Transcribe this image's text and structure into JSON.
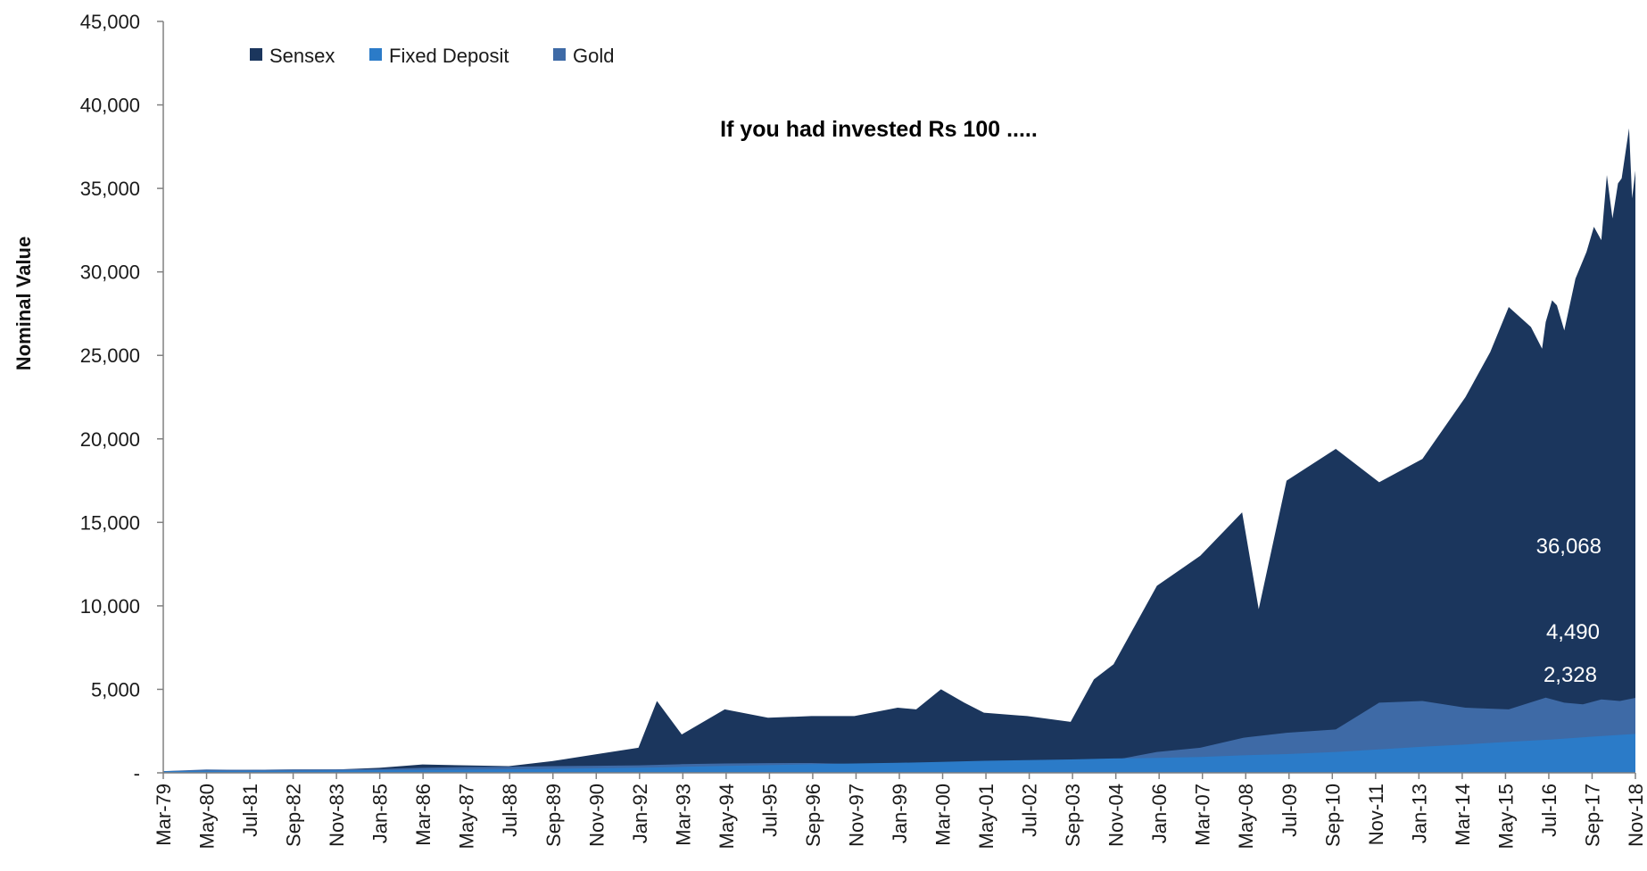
{
  "chart_data": {
    "type": "area",
    "stacking": "overlapping",
    "title": "If you had invested Rs 100 .....",
    "xlabel": "",
    "ylabel": "Nominal Value",
    "ylim": [
      0,
      45000
    ],
    "yticks": [
      0,
      5000,
      10000,
      15000,
      20000,
      25000,
      30000,
      35000,
      40000,
      45000
    ],
    "ytick_labels": [
      "-",
      "5,000",
      "10,000",
      "15,000",
      "20,000",
      "25,000",
      "30,000",
      "35,000",
      "40,000",
      "45,000"
    ],
    "grid": false,
    "legend_position": "top-left",
    "xtick_labels": [
      "Mar-79",
      "May-80",
      "Jul-81",
      "Sep-82",
      "Nov-83",
      "Jan-85",
      "Mar-86",
      "May-87",
      "Jul-88",
      "Sep-89",
      "Nov-90",
      "Jan-92",
      "Mar-93",
      "May-94",
      "Jul-95",
      "Sep-96",
      "Nov-97",
      "Jan-99",
      "Mar-00",
      "May-01",
      "Jul-02",
      "Sep-03",
      "Nov-04",
      "Jan-06",
      "Mar-07",
      "May-08",
      "Jul-09",
      "Sep-10",
      "Nov-11",
      "Jan-13",
      "Mar-14",
      "May-15",
      "Jul-16",
      "Sep-17",
      "Nov-18"
    ],
    "series": [
      {
        "name": "Sensex",
        "color": "#1b365d",
        "x": [
          1979.17,
          1980.33,
          1981.5,
          1982.67,
          1983.83,
          1985.0,
          1986.17,
          1987.33,
          1988.5,
          1989.67,
          1990.83,
          1992.0,
          1992.5,
          1993.17,
          1994.33,
          1995.5,
          1996.67,
          1997.83,
          1999.0,
          1999.5,
          2000.17,
          2000.8,
          2001.33,
          2002.5,
          2003.67,
          2004.3,
          2004.83,
          2006.0,
          2007.17,
          2008.3,
          2008.75,
          2009.5,
          2010.83,
          2012.0,
          2013.17,
          2014.33,
          2015.0,
          2015.5,
          2016.1,
          2016.4,
          2016.5,
          2016.67,
          2016.8,
          2017.0,
          2017.3,
          2017.6,
          2017.8,
          2018.0,
          2018.15,
          2018.3,
          2018.45,
          2018.55,
          2018.75,
          2018.83,
          2018.92
        ],
        "values": [
          100,
          150,
          180,
          200,
          200,
          300,
          500,
          450,
          400,
          700,
          1100,
          1500,
          4300,
          2300,
          3800,
          3300,
          3400,
          3400,
          3900,
          3800,
          5000,
          4200,
          3600,
          3400,
          3050,
          5600,
          6500,
          11200,
          13000,
          15600,
          9800,
          17500,
          19400,
          17400,
          18800,
          22500,
          25200,
          27900,
          26700,
          25400,
          27000,
          28300,
          28000,
          26500,
          29600,
          31200,
          32700,
          31900,
          35800,
          33200,
          35300,
          35600,
          38600,
          34400,
          36068
        ]
      },
      {
        "name": "Gold",
        "color": "#3e6aa6",
        "x": [
          1979.17,
          1980.33,
          1981.5,
          1982.67,
          1983.83,
          1985.0,
          1986.17,
          1987.33,
          1988.5,
          1989.67,
          1990.83,
          1992.0,
          1993.17,
          1994.33,
          1995.5,
          1996.67,
          1997.83,
          1999.0,
          2000.17,
          2001.33,
          2002.5,
          2003.67,
          2004.83,
          2006.0,
          2007.17,
          2008.33,
          2009.5,
          2010.83,
          2012.0,
          2013.17,
          2014.33,
          2015.5,
          2016.5,
          2017.0,
          2017.5,
          2018.0,
          2018.5,
          2018.92
        ],
        "values": [
          100,
          200,
          180,
          200,
          210,
          230,
          300,
          350,
          360,
          400,
          420,
          450,
          520,
          560,
          580,
          590,
          530,
          510,
          550,
          560,
          600,
          680,
          760,
          1250,
          1500,
          2100,
          2400,
          2600,
          4200,
          4300,
          3900,
          3800,
          4500,
          4200,
          4100,
          4400,
          4300,
          4490
        ]
      },
      {
        "name": "Fixed Deposit",
        "color": "#2b7bc8",
        "x": [
          1979.17,
          1980.33,
          1981.5,
          1982.67,
          1983.83,
          1985.0,
          1986.17,
          1987.33,
          1988.5,
          1989.67,
          1990.83,
          1992.0,
          1993.17,
          1994.33,
          1995.5,
          1996.67,
          1997.83,
          1999.0,
          2000.17,
          2001.33,
          2002.5,
          2003.67,
          2004.83,
          2006.0,
          2007.17,
          2008.33,
          2009.5,
          2010.83,
          2012.0,
          2013.17,
          2014.33,
          2015.5,
          2016.67,
          2017.83,
          2018.92
        ],
        "values": [
          100,
          110,
          120,
          130,
          145,
          160,
          175,
          195,
          215,
          240,
          270,
          310,
          360,
          410,
          460,
          520,
          560,
          600,
          660,
          720,
          760,
          800,
          860,
          900,
          950,
          1050,
          1120,
          1250,
          1400,
          1560,
          1700,
          1860,
          2000,
          2180,
          2328
        ]
      }
    ],
    "legend_order": [
      "Sensex",
      "Fixed Deposit",
      "Gold"
    ],
    "data_labels": [
      {
        "series": "Sensex",
        "text": "36,068"
      },
      {
        "series": "Gold",
        "text": "4,490"
      },
      {
        "series": "Fixed Deposit",
        "text": "2,328"
      }
    ]
  }
}
